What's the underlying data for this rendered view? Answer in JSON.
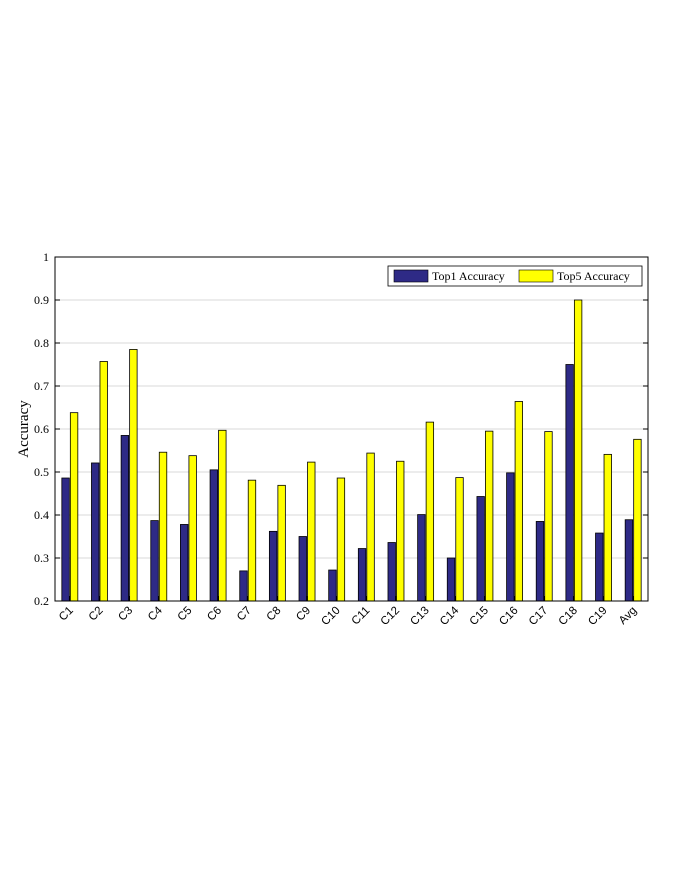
{
  "chart_data": {
    "type": "bar",
    "categories": [
      "C1",
      "C2",
      "C3",
      "C4",
      "C5",
      "C6",
      "C7",
      "C8",
      "C9",
      "C10",
      "C11",
      "C12",
      "C13",
      "C14",
      "C15",
      "C16",
      "C17",
      "C18",
      "C19",
      "Avg"
    ],
    "series": [
      {
        "name": "Top1 Accuracy",
        "color": "#2e2a86",
        "values": [
          0.486,
          0.521,
          0.585,
          0.387,
          0.378,
          0.505,
          0.27,
          0.362,
          0.35,
          0.272,
          0.322,
          0.336,
          0.401,
          0.3,
          0.443,
          0.498,
          0.385,
          0.75,
          0.358,
          0.389
        ]
      },
      {
        "name": "Top5 Accuracy",
        "color": "#ffff00",
        "values": [
          0.638,
          0.757,
          0.785,
          0.546,
          0.538,
          0.597,
          0.481,
          0.469,
          0.523,
          0.486,
          0.544,
          0.525,
          0.616,
          0.487,
          0.595,
          0.664,
          0.594,
          0.9,
          0.541,
          0.576
        ]
      }
    ],
    "ylabel": "Accuracy",
    "xlabel": "",
    "title": "",
    "ylim": [
      0.2,
      1.0
    ],
    "yticks": [
      "0.2",
      "0.3",
      "0.4",
      "0.5",
      "0.6",
      "0.7",
      "0.8",
      "0.9",
      "1"
    ],
    "grid": true,
    "legend": "top-right"
  }
}
